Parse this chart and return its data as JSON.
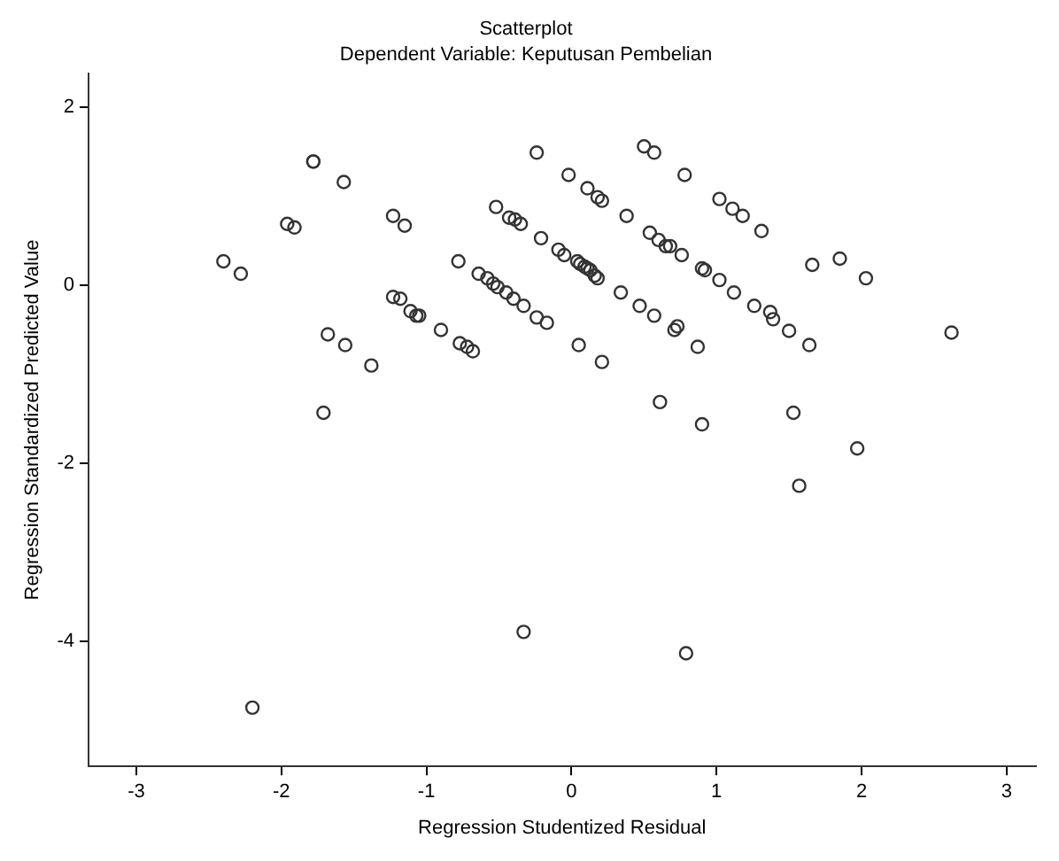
{
  "chart_data": {
    "type": "scatter",
    "title": "Scatterplot",
    "subtitle": "Dependent Variable: Keputusan Pembelian",
    "xlabel": "Regression Studentized Residual",
    "ylabel": "Regression Standardized Predicted Value",
    "xlim": [
      -3.33,
      3.2
    ],
    "ylim": [
      -5.4,
      2.38
    ],
    "xticks": [
      -3,
      -2,
      -1,
      0,
      1,
      2,
      3
    ],
    "yticks": [
      -4,
      -2,
      0,
      2
    ],
    "grid": false,
    "legend": false,
    "marker": "circle",
    "series": [
      {
        "color": "#333333",
        "x": [
          -2.4,
          -2.28,
          -1.78,
          -1.78,
          -1.57,
          -1.96,
          -1.91,
          -1.23,
          -1.15,
          -1.68,
          -1.56,
          -1.38,
          -1.71,
          -1.23,
          -1.18,
          -1.11,
          -1.07,
          -1.05,
          -0.9,
          -0.77,
          -0.72,
          -0.68,
          -0.78,
          -0.64,
          -0.58,
          -0.54,
          -0.51,
          -0.45,
          -0.4,
          -0.52,
          -0.43,
          -0.39,
          -0.35,
          -0.24,
          -0.02,
          0.11,
          0.18,
          0.21,
          0.38,
          0.5,
          0.57,
          0.78,
          1.02,
          1.11,
          1.18,
          1.31,
          -0.21,
          -0.09,
          -0.05,
          0.04,
          0.06,
          0.09,
          0.11,
          0.13,
          0.16,
          0.18,
          0.54,
          0.6,
          0.65,
          0.68,
          0.76,
          0.9,
          0.92,
          1.02,
          1.12,
          1.26,
          1.37,
          1.39,
          1.5,
          1.64,
          1.66,
          1.85,
          2.03,
          2.62,
          -0.33,
          -0.24,
          -0.17,
          0.05,
          0.21,
          0.34,
          0.47,
          0.57,
          0.71,
          0.73,
          0.87,
          0.61,
          0.9,
          1.53,
          1.97,
          1.57,
          -2.2,
          -0.33,
          0.79
        ],
        "values": [
          0.27,
          0.13,
          1.39,
          1.39,
          1.16,
          0.69,
          0.65,
          0.78,
          0.67,
          -0.55,
          -0.67,
          -0.9,
          -1.43,
          -0.13,
          -0.15,
          -0.29,
          -0.34,
          -0.34,
          -0.5,
          -0.65,
          -0.69,
          -0.74,
          0.27,
          0.13,
          0.08,
          0.02,
          -0.02,
          -0.08,
          -0.15,
          0.88,
          0.76,
          0.74,
          0.69,
          1.49,
          1.24,
          1.09,
          0.99,
          0.95,
          0.78,
          1.56,
          1.49,
          1.24,
          0.97,
          0.86,
          0.78,
          0.61,
          0.53,
          0.4,
          0.34,
          0.27,
          0.24,
          0.21,
          0.19,
          0.17,
          0.11,
          0.08,
          0.59,
          0.51,
          0.44,
          0.44,
          0.34,
          0.19,
          0.17,
          0.06,
          -0.08,
          -0.23,
          -0.3,
          -0.38,
          -0.51,
          -0.67,
          0.23,
          0.3,
          0.08,
          -0.53,
          -0.23,
          -0.36,
          -0.42,
          -0.67,
          -0.86,
          -0.08,
          -0.23,
          -0.34,
          -0.5,
          -0.46,
          -0.69,
          -1.31,
          -1.56,
          -1.43,
          -1.83,
          -2.25,
          -4.74,
          -3.89,
          -4.13
        ]
      }
    ]
  }
}
